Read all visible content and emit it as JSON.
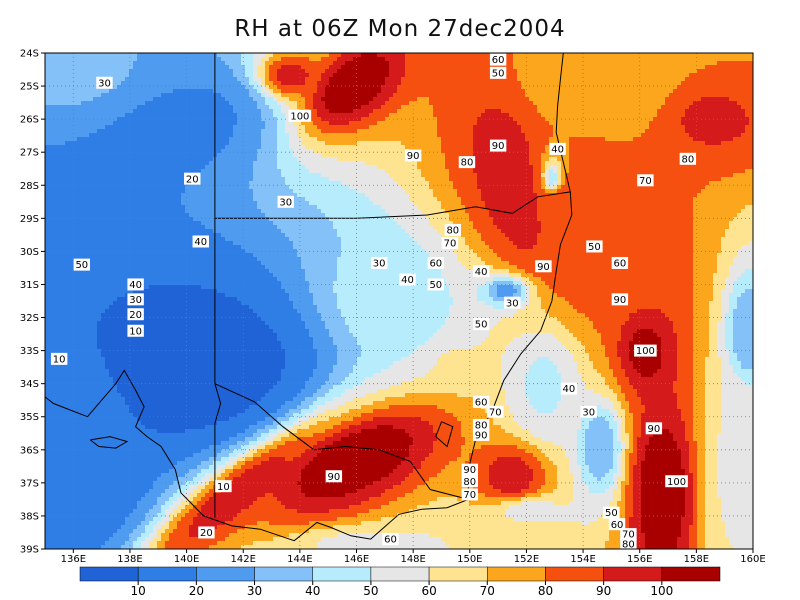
{
  "title": "RH at 06Z Mon 27dec2004",
  "lat_ticks": [
    "24S",
    "25S",
    "26S",
    "27S",
    "28S",
    "29S",
    "30S",
    "31S",
    "32S",
    "33S",
    "34S",
    "35S",
    "36S",
    "37S",
    "38S",
    "39S"
  ],
  "lon_ticks": [
    "136E",
    "138E",
    "140E",
    "142E",
    "144E",
    "146E",
    "148E",
    "150E",
    "152E",
    "154E",
    "156E",
    "158E",
    "160E"
  ],
  "colorbar": {
    "colors": [
      "#1f63d6",
      "#2f7ee6",
      "#4e9bf0",
      "#84c1f8",
      "#b6ecfc",
      "#e6e6e6",
      "#fee491",
      "#fca61e",
      "#f5500f",
      "#d41a1a",
      "#a80000"
    ],
    "labels": [
      "10",
      "20",
      "30",
      "40",
      "50",
      "60",
      "70",
      "80",
      "90",
      "100"
    ]
  },
  "contour_labels": [
    {
      "text": "30",
      "lon": 137.1,
      "lat": -24.9
    },
    {
      "text": "20",
      "lon": 140.2,
      "lat": -27.8
    },
    {
      "text": "30",
      "lon": 143.5,
      "lat": -28.5
    },
    {
      "text": "40",
      "lon": 140.5,
      "lat": -29.7
    },
    {
      "text": "50",
      "lon": 136.3,
      "lat": -30.4
    },
    {
      "text": "40",
      "lon": 138.2,
      "lat": -31.0
    },
    {
      "text": "30",
      "lon": 138.2,
      "lat": -31.45
    },
    {
      "text": "20",
      "lon": 138.2,
      "lat": -31.9
    },
    {
      "text": "10",
      "lon": 138.2,
      "lat": -32.4
    },
    {
      "text": "10",
      "lon": 135.5,
      "lat": -33.25
    },
    {
      "text": "100",
      "lon": 144.0,
      "lat": -25.9
    },
    {
      "text": "90",
      "lon": 148.0,
      "lat": -27.1
    },
    {
      "text": "80",
      "lon": 149.9,
      "lat": -27.3
    },
    {
      "text": "90",
      "lon": 151.0,
      "lat": -26.8
    },
    {
      "text": "40",
      "lon": 153.1,
      "lat": -26.9
    },
    {
      "text": "80",
      "lon": 157.7,
      "lat": -27.2
    },
    {
      "text": "70",
      "lon": 156.2,
      "lat": -27.85
    },
    {
      "text": "60",
      "lon": 151.0,
      "lat": -24.2
    },
    {
      "text": "50",
      "lon": 151.0,
      "lat": -24.6
    },
    {
      "text": "80",
      "lon": 149.4,
      "lat": -29.35
    },
    {
      "text": "70",
      "lon": 149.3,
      "lat": -29.75
    },
    {
      "text": "60",
      "lon": 148.8,
      "lat": -30.35
    },
    {
      "text": "30",
      "lon": 146.8,
      "lat": -30.35
    },
    {
      "text": "40",
      "lon": 147.8,
      "lat": -30.85
    },
    {
      "text": "50",
      "lon": 148.8,
      "lat": -31.0
    },
    {
      "text": "40",
      "lon": 150.4,
      "lat": -30.6
    },
    {
      "text": "30",
      "lon": 151.5,
      "lat": -31.55
    },
    {
      "text": "90",
      "lon": 152.6,
      "lat": -30.45
    },
    {
      "text": "50",
      "lon": 154.4,
      "lat": -29.85
    },
    {
      "text": "60",
      "lon": 155.3,
      "lat": -30.35
    },
    {
      "text": "90",
      "lon": 155.3,
      "lat": -31.45
    },
    {
      "text": "50",
      "lon": 150.4,
      "lat": -32.2
    },
    {
      "text": "100",
      "lon": 156.2,
      "lat": -33.0
    },
    {
      "text": "40",
      "lon": 153.5,
      "lat": -34.15
    },
    {
      "text": "30",
      "lon": 154.2,
      "lat": -34.85
    },
    {
      "text": "60",
      "lon": 150.4,
      "lat": -34.55
    },
    {
      "text": "70",
      "lon": 150.9,
      "lat": -34.85
    },
    {
      "text": "80",
      "lon": 150.4,
      "lat": -35.25
    },
    {
      "text": "90",
      "lon": 150.4,
      "lat": -35.55
    },
    {
      "text": "90",
      "lon": 156.5,
      "lat": -35.35
    },
    {
      "text": "90",
      "lon": 145.2,
      "lat": -36.8
    },
    {
      "text": "90",
      "lon": 150.0,
      "lat": -36.6
    },
    {
      "text": "80",
      "lon": 150.0,
      "lat": -36.95
    },
    {
      "text": "70",
      "lon": 150.0,
      "lat": -37.35
    },
    {
      "text": "100",
      "lon": 157.3,
      "lat": -36.95
    },
    {
      "text": "10",
      "lon": 141.3,
      "lat": -37.1
    },
    {
      "text": "20",
      "lon": 140.7,
      "lat": -38.5
    },
    {
      "text": "60",
      "lon": 147.2,
      "lat": -38.7
    },
    {
      "text": "50",
      "lon": 155.0,
      "lat": -37.9
    },
    {
      "text": "60",
      "lon": 155.2,
      "lat": -38.25
    },
    {
      "text": "70",
      "lon": 155.6,
      "lat": -38.55
    },
    {
      "text": "80",
      "lon": 155.6,
      "lat": -38.85
    }
  ]
}
